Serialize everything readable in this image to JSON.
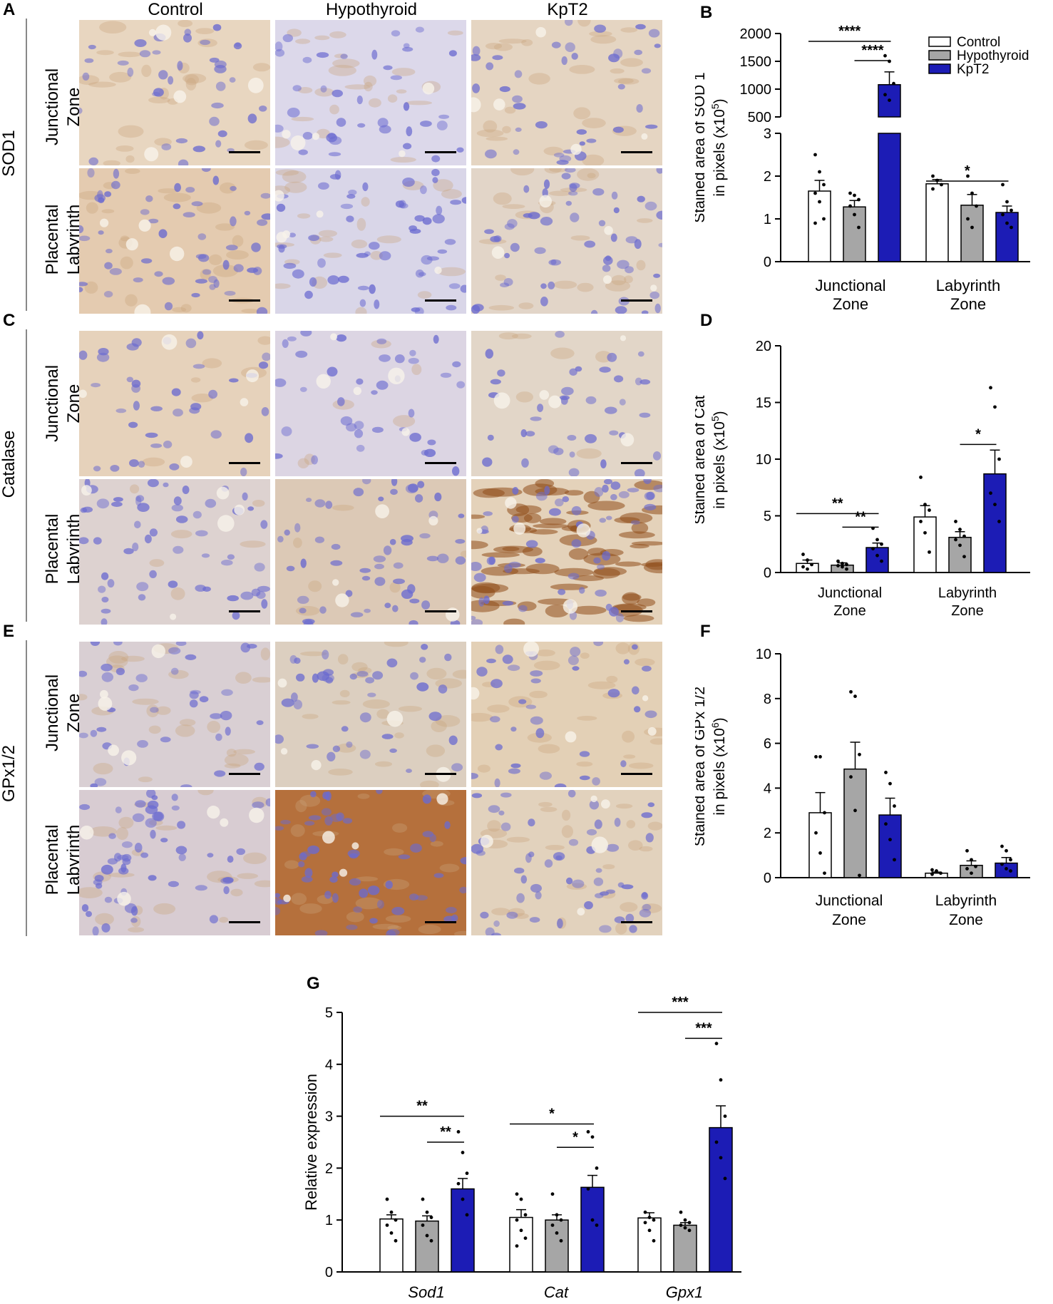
{
  "panel_labels": [
    "A",
    "B",
    "C",
    "D",
    "E",
    "F",
    "G"
  ],
  "columns": [
    "Control",
    "Hypothyroid",
    "KpT2"
  ],
  "row_groups": [
    {
      "stain": "SOD1",
      "rows": [
        [
          "Junctional",
          "Zone"
        ],
        [
          "Placental",
          "Labyrinth"
        ]
      ]
    },
    {
      "stain": "Catalase",
      "rows": [
        [
          "Junctional",
          "Zone"
        ],
        [
          "Placental",
          "Labyrinth"
        ]
      ]
    },
    {
      "stain": "GPx1/2",
      "rows": [
        [
          "Junctional",
          "Zone"
        ],
        [
          "Placental",
          "Labyrinth"
        ]
      ]
    }
  ],
  "colors": {
    "control": "#ffffff",
    "hypothyroid": "#a6a6a6",
    "kpt2": "#1c1cb5",
    "stain_brown": "#a0662a",
    "nuclei_blue": "#6a6ad0"
  },
  "chart_data": [
    {
      "id": "B",
      "type": "bar",
      "ylabel_lines": [
        "Stained area of SOD 1",
        "in pixels (x10",
        "5",
        ")"
      ],
      "categories": [
        "Junctional Zone",
        "Labyrinth Zone"
      ],
      "category_lines": [
        [
          "Junctional",
          "Zone"
        ],
        [
          "Labyrinth",
          "Zone"
        ]
      ],
      "axis_break": {
        "lower": [
          0,
          3
        ],
        "upper": [
          500,
          2000
        ]
      },
      "lower_ticks": [
        "0",
        "1",
        "2",
        "3"
      ],
      "upper_ticks": [
        "500",
        "1000",
        "1500",
        "2000"
      ],
      "legend": [
        "Control",
        "Hypothyroid",
        "KpT2"
      ],
      "legend_position": "top-right",
      "series": [
        {
          "name": "Control",
          "values": [
            1.65,
            1.82
          ],
          "sem": [
            0.25,
            0.1
          ]
        },
        {
          "name": "Hypothyroid",
          "values": [
            1.28,
            1.32
          ],
          "sem": [
            0.15,
            0.25
          ]
        },
        {
          "name": "KpT2",
          "values": [
            1080,
            1.15
          ],
          "sem": [
            230,
            0.15
          ]
        }
      ],
      "points": [
        [
          [
            2.5,
            2.1,
            1.8,
            1.6,
            1.4,
            1.0,
            0.9
          ],
          [
            2.0,
            1.9,
            1.8,
            1.7
          ]
        ],
        [
          [
            1.6,
            1.55,
            1.45,
            1.3,
            1.1,
            0.8
          ],
          [
            2.0,
            1.6,
            1.3,
            1.0,
            0.8
          ]
        ],
        [
          [
            1600,
            1500,
            1100,
            900,
            800
          ],
          [
            1.8,
            1.4,
            1.2,
            1.1,
            0.9,
            0.8
          ]
        ]
      ],
      "significance": [
        {
          "label": "****",
          "group": 0,
          "from": 0,
          "to": 2,
          "level": "high"
        },
        {
          "label": "****",
          "group": 0,
          "from": 1,
          "to": 2,
          "level": "low"
        },
        {
          "label": "*",
          "group": 1,
          "from": 0,
          "to": 2,
          "level": "high"
        }
      ]
    },
    {
      "id": "D",
      "type": "bar",
      "ylabel_lines": [
        "Stained area of Cat",
        "in pixels (x10",
        "5",
        ")"
      ],
      "categories": [
        "Junctional Zone",
        "Labyrinth Zone"
      ],
      "category_lines": [
        [
          "Junctional",
          "Zone"
        ],
        [
          "Labyrinth",
          "Zone"
        ]
      ],
      "ylim": [
        0,
        20
      ],
      "ticks": [
        "0",
        "5",
        "10",
        "15",
        "20"
      ],
      "series": [
        {
          "name": "Control",
          "values": [
            0.8,
            4.9
          ],
          "sem": [
            0.3,
            1.0
          ]
        },
        {
          "name": "Hypothyroid",
          "values": [
            0.65,
            3.1
          ],
          "sem": [
            0.2,
            0.5
          ]
        },
        {
          "name": "KpT2",
          "values": [
            2.2,
            8.7
          ],
          "sem": [
            0.4,
            2.1
          ]
        }
      ],
      "points": [
        [
          [
            1.6,
            1.1,
            0.7,
            0.5,
            0.3
          ],
          [
            8.4,
            6.0,
            5.5,
            4.5,
            3.5,
            1.8
          ]
        ],
        [
          [
            1.0,
            0.8,
            0.7,
            0.6,
            0.5,
            0.3
          ],
          [
            4.5,
            3.8,
            3.2,
            2.9,
            2.4,
            1.4
          ]
        ],
        [
          [
            3.9,
            2.9,
            2.5,
            2.1,
            1.5,
            1.0
          ],
          [
            16.3,
            14.6,
            10.0,
            7.0,
            6.0,
            4.5
          ]
        ]
      ],
      "significance": [
        {
          "label": "**",
          "group": 0,
          "from": 0,
          "to": 2,
          "y": 5.2
        },
        {
          "label": "**",
          "group": 0,
          "from": 1,
          "to": 2,
          "y": 4.0
        },
        {
          "label": "*",
          "group": 1,
          "from": 1,
          "to": 2,
          "y": 11.3
        }
      ]
    },
    {
      "id": "F",
      "type": "bar",
      "ylabel_lines": [
        "Stained area of GPx 1/2",
        "in pixels (x10",
        "6",
        ")"
      ],
      "categories": [
        "Junctional Zone",
        "Labyrinth Zone"
      ],
      "category_lines": [
        [
          "Junctional",
          "Zone"
        ],
        [
          "Labyrinth",
          "Zone"
        ]
      ],
      "ylim": [
        0,
        10
      ],
      "ticks": [
        "0",
        "2",
        "4",
        "6",
        "8",
        "10"
      ],
      "series": [
        {
          "name": "Control",
          "values": [
            2.9,
            0.2
          ],
          "sem": [
            0.9,
            0.05
          ]
        },
        {
          "name": "Hypothyroid",
          "values": [
            4.85,
            0.55
          ],
          "sem": [
            1.2,
            0.2
          ]
        },
        {
          "name": "KpT2",
          "values": [
            2.8,
            0.65
          ],
          "sem": [
            0.75,
            0.25
          ]
        }
      ],
      "points": [
        [
          [
            5.4,
            5.4,
            2.9,
            2.0,
            1.1,
            0.2
          ],
          [
            0.35,
            0.3,
            0.2,
            0.15
          ]
        ],
        [
          [
            8.3,
            8.1,
            5.5,
            4.5,
            3.0,
            0.1
          ],
          [
            1.2,
            0.8,
            0.5,
            0.4,
            0.2
          ]
        ],
        [
          [
            4.7,
            4.2,
            3.2,
            2.4,
            1.7,
            0.8
          ],
          [
            1.4,
            1.2,
            0.8,
            0.6,
            0.4,
            0.3
          ]
        ]
      ],
      "significance": []
    },
    {
      "id": "G",
      "type": "bar",
      "ylabel": "Relative expression",
      "categories": [
        "Sod1",
        "Cat",
        "Gpx1"
      ],
      "category_style": "italic",
      "ylim": [
        0,
        5
      ],
      "ticks": [
        "0",
        "1",
        "2",
        "3",
        "4",
        "5"
      ],
      "series": [
        {
          "name": "Control",
          "values": [
            1.02,
            1.05,
            1.04
          ],
          "sem": [
            0.08,
            0.15,
            0.1
          ]
        },
        {
          "name": "Hypothyroid",
          "values": [
            0.98,
            1.0,
            0.9
          ],
          "sem": [
            0.1,
            0.1,
            0.05
          ]
        },
        {
          "name": "KpT2",
          "values": [
            1.6,
            1.63,
            2.78
          ],
          "sem": [
            0.2,
            0.23,
            0.42
          ]
        }
      ],
      "points": [
        [
          [
            1.4,
            1.15,
            1.0,
            0.9,
            0.75,
            0.6
          ],
          [
            1.5,
            1.4,
            1.1,
            1.0,
            0.8,
            0.65,
            0.5
          ],
          [
            1.15,
            1.05,
            1.0,
            0.95,
            0.8,
            0.6
          ]
        ],
        [
          [
            1.4,
            1.15,
            1.05,
            0.9,
            0.7,
            0.6
          ],
          [
            1.5,
            1.1,
            1.0,
            0.9,
            0.75,
            0.6
          ],
          [
            1.15,
            1.0,
            0.95,
            0.9,
            0.85,
            0.8
          ]
        ],
        [
          [
            2.7,
            2.3,
            1.9,
            1.7,
            1.4,
            1.1
          ],
          [
            2.7,
            2.6,
            2.0,
            1.6,
            1.0,
            0.9
          ],
          [
            4.4,
            3.7,
            3.0,
            2.5,
            2.2,
            1.8
          ]
        ]
      ],
      "significance": [
        {
          "label": "**",
          "group": 0,
          "from": 0,
          "to": 2,
          "y": 3.0
        },
        {
          "label": "**",
          "group": 0,
          "from": 1,
          "to": 2,
          "y": 2.5
        },
        {
          "label": "*",
          "group": 1,
          "from": 0,
          "to": 2,
          "y": 2.85
        },
        {
          "label": "*",
          "group": 1,
          "from": 1,
          "to": 2,
          "y": 2.4
        },
        {
          "label": "***",
          "group": 2,
          "from": 0,
          "to": 2,
          "y": 5.0
        },
        {
          "label": "***",
          "group": 2,
          "from": 1,
          "to": 2,
          "y": 4.5
        }
      ]
    }
  ]
}
